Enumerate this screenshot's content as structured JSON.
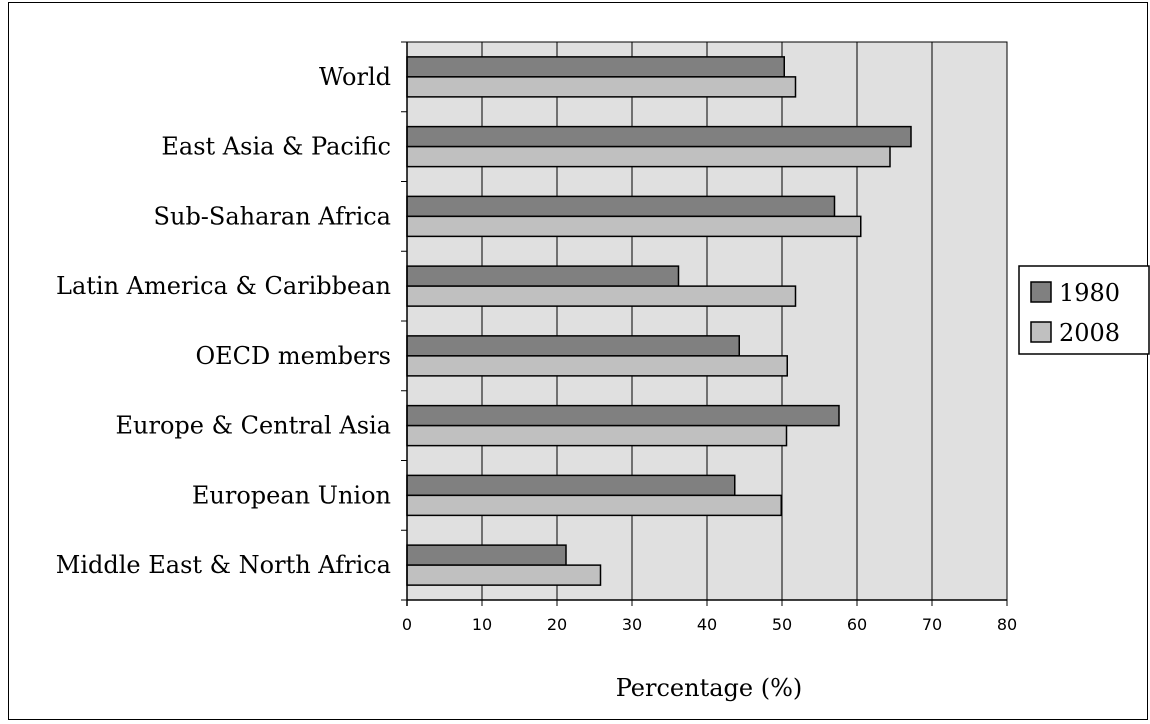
{
  "chart_data": {
    "type": "bar",
    "orientation": "horizontal",
    "categories": [
      "World",
      "East Asia & Pacific",
      "Sub-Saharan Africa",
      "Latin America & Caribbean",
      "OECD members",
      "Europe & Central Asia",
      "European Union",
      "Middle East & North Africa"
    ],
    "series": [
      {
        "name": "1980",
        "color": "#808080",
        "values": [
          50.3,
          67.2,
          57.0,
          36.2,
          44.3,
          57.6,
          43.7,
          21.2
        ]
      },
      {
        "name": "2008",
        "color": "#c0c0c0",
        "values": [
          51.8,
          64.4,
          60.5,
          51.8,
          50.7,
          50.6,
          49.9,
          25.8
        ]
      }
    ],
    "xlabel": "Percentage (%)",
    "ylabel": "",
    "xlim": [
      0,
      80
    ],
    "xticks": [
      0,
      10,
      20,
      30,
      40,
      50,
      60,
      70,
      80
    ],
    "grid": true,
    "plot_background": "#e0e0e0",
    "legend_position": "right"
  }
}
